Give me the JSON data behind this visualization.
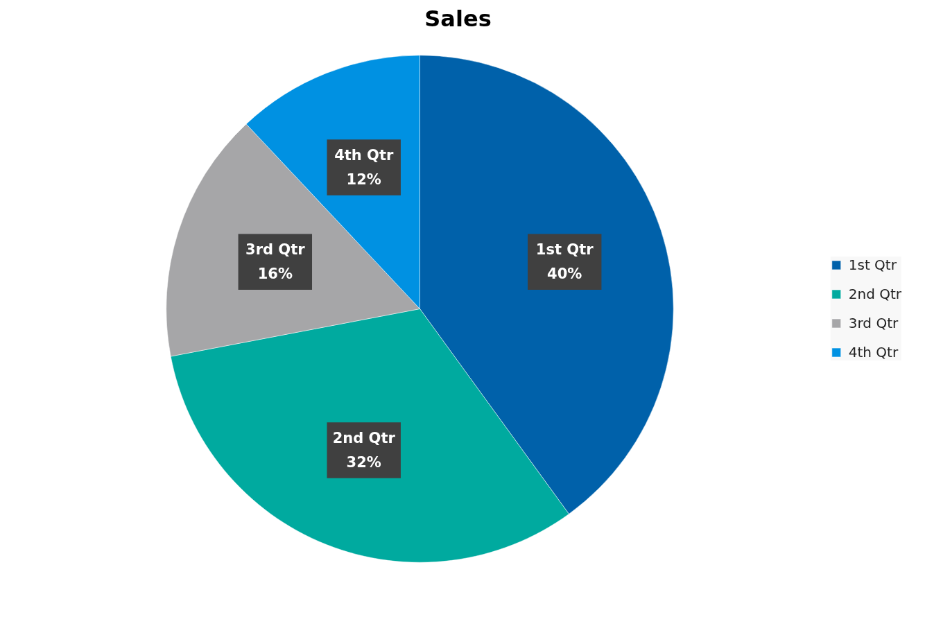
{
  "chart_data": {
    "type": "pie",
    "title": "Sales",
    "categories": [
      "1st Qtr",
      "2nd Qtr",
      "3rd Qtr",
      "4th Qtr"
    ],
    "values": [
      40,
      32,
      16,
      12
    ],
    "colors": [
      "#0061aa",
      "#00aa9f",
      "#a6a6a8",
      "#0091e2"
    ],
    "value_labels": [
      "40%",
      "32%",
      "16%",
      "12%"
    ],
    "legend": "right"
  }
}
